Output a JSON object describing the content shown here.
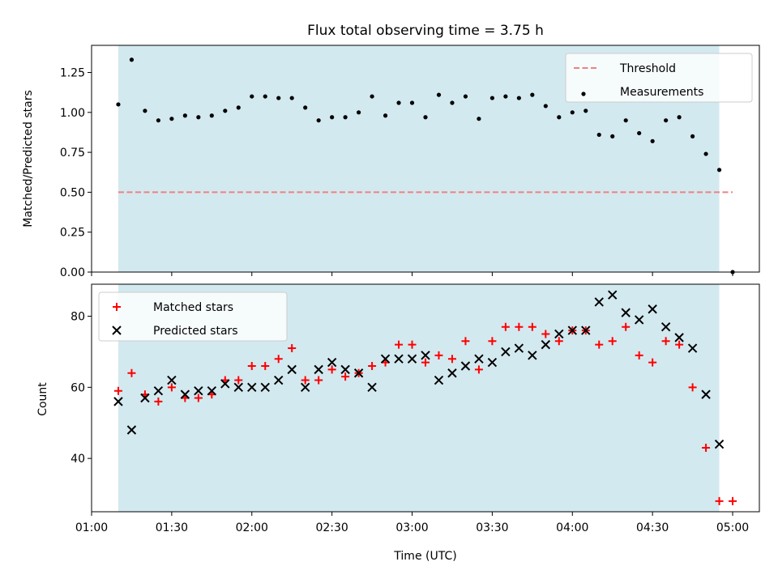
{
  "chart_data": [
    {
      "type": "scatter",
      "title": "Flux total observing time = 3.75 h",
      "xlabel": "",
      "ylabel": "Matched/Predicted stars",
      "x_type": "time",
      "xlim": [
        "01:00",
        "05:10"
      ],
      "ylim": [
        0,
        1.42
      ],
      "yticks": [
        0,
        0.25,
        0.5,
        0.75,
        1.0,
        1.25
      ],
      "ytick_labels": [
        "0.00",
        "0.25",
        "0.50",
        "0.75",
        "1.00",
        "1.25"
      ],
      "shaded_region": {
        "x": [
          "01:10",
          "04:55"
        ],
        "color": "#d3e9f0"
      },
      "legend": {
        "position": "top-right",
        "entries": [
          "Threshold",
          "Measurements"
        ]
      },
      "series": [
        {
          "name": "Threshold",
          "style": "dashed-line",
          "color": "#f08080",
          "x": [
            "01:10",
            "05:00"
          ],
          "y": [
            0.5,
            0.5
          ]
        },
        {
          "name": "Measurements",
          "style": "dot",
          "color": "#000000",
          "x": [
            "01:10",
            "01:15",
            "01:20",
            "01:25",
            "01:30",
            "01:35",
            "01:40",
            "01:45",
            "01:50",
            "01:55",
            "02:00",
            "02:05",
            "02:10",
            "02:15",
            "02:20",
            "02:25",
            "02:30",
            "02:35",
            "02:40",
            "02:45",
            "02:50",
            "02:55",
            "03:00",
            "03:05",
            "03:10",
            "03:15",
            "03:20",
            "03:25",
            "03:30",
            "03:35",
            "03:40",
            "03:45",
            "03:50",
            "03:55",
            "04:00",
            "04:05",
            "04:10",
            "04:15",
            "04:20",
            "04:25",
            "04:30",
            "04:35",
            "04:40",
            "04:45",
            "04:50",
            "04:55",
            "05:00"
          ],
          "y": [
            1.05,
            1.33,
            1.01,
            0.95,
            0.96,
            0.98,
            0.97,
            0.98,
            1.01,
            1.03,
            1.1,
            1.1,
            1.09,
            1.09,
            1.03,
            0.95,
            0.97,
            0.97,
            1.0,
            1.1,
            0.98,
            1.06,
            1.06,
            0.97,
            1.11,
            1.06,
            1.1,
            0.96,
            1.09,
            1.1,
            1.09,
            1.11,
            1.04,
            0.97,
            1.0,
            1.01,
            0.86,
            0.85,
            0.95,
            0.87,
            0.82,
            0.95,
            0.97,
            0.85,
            0.74,
            0.64,
            0.0
          ]
        }
      ]
    },
    {
      "type": "scatter",
      "title": "",
      "xlabel": "Time (UTC)",
      "ylabel": "Count",
      "x_type": "time",
      "xlim": [
        "01:00",
        "05:10"
      ],
      "xticks": [
        "01:00",
        "01:30",
        "02:00",
        "02:30",
        "03:00",
        "03:30",
        "04:00",
        "04:30",
        "05:00"
      ],
      "ylim": [
        25,
        89
      ],
      "yticks": [
        40,
        60,
        80
      ],
      "shaded_region": {
        "x": [
          "01:10",
          "04:55"
        ],
        "color": "#d3e9f0"
      },
      "legend": {
        "position": "top-left",
        "entries": [
          "Matched stars",
          "Predicted stars"
        ]
      },
      "series": [
        {
          "name": "Matched stars",
          "marker": "+",
          "color": "#ff0000",
          "x": [
            "01:10",
            "01:15",
            "01:20",
            "01:25",
            "01:30",
            "01:35",
            "01:40",
            "01:45",
            "01:50",
            "01:55",
            "02:00",
            "02:05",
            "02:10",
            "02:15",
            "02:20",
            "02:25",
            "02:30",
            "02:35",
            "02:40",
            "02:45",
            "02:50",
            "02:55",
            "03:00",
            "03:05",
            "03:10",
            "03:15",
            "03:20",
            "03:25",
            "03:30",
            "03:35",
            "03:40",
            "03:45",
            "03:50",
            "03:55",
            "04:00",
            "04:05",
            "04:10",
            "04:15",
            "04:20",
            "04:25",
            "04:30",
            "04:35",
            "04:40",
            "04:45",
            "04:50",
            "04:55",
            "05:00"
          ],
          "y": [
            59,
            64,
            58,
            56,
            60,
            57,
            57,
            58,
            62,
            62,
            66,
            66,
            68,
            71,
            62,
            62,
            65,
            63,
            64,
            66,
            67,
            72,
            72,
            67,
            69,
            68,
            73,
            65,
            73,
            77,
            77,
            77,
            75,
            73,
            76,
            76,
            72,
            73,
            77,
            69,
            67,
            73,
            72,
            60,
            43,
            28,
            28
          ]
        },
        {
          "name": "Predicted stars",
          "marker": "x",
          "color": "#000000",
          "x": [
            "01:10",
            "01:15",
            "01:20",
            "01:25",
            "01:30",
            "01:35",
            "01:40",
            "01:45",
            "01:50",
            "01:55",
            "02:00",
            "02:05",
            "02:10",
            "02:15",
            "02:20",
            "02:25",
            "02:30",
            "02:35",
            "02:40",
            "02:45",
            "02:50",
            "02:55",
            "03:00",
            "03:05",
            "03:10",
            "03:15",
            "03:20",
            "03:25",
            "03:30",
            "03:35",
            "03:40",
            "03:45",
            "03:50",
            "03:55",
            "04:00",
            "04:05",
            "04:10",
            "04:15",
            "04:20",
            "04:25",
            "04:30",
            "04:35",
            "04:40",
            "04:45",
            "04:50",
            "04:55"
          ],
          "y": [
            56,
            48,
            57,
            59,
            62,
            58,
            59,
            59,
            61,
            60,
            60,
            60,
            62,
            65,
            60,
            65,
            67,
            65,
            64,
            60,
            68,
            68,
            68,
            69,
            62,
            64,
            66,
            68,
            67,
            70,
            71,
            69,
            72,
            75,
            76,
            76,
            84,
            86,
            81,
            79,
            82,
            77,
            74,
            71,
            58,
            44
          ]
        }
      ]
    }
  ]
}
